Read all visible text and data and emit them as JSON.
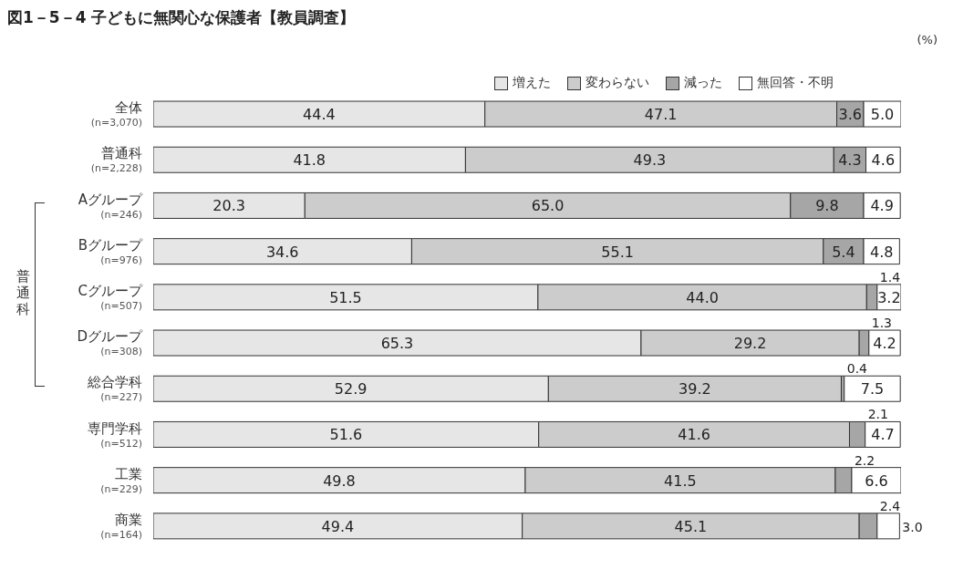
{
  "chart_data": {
    "type": "bar",
    "orientation": "horizontal",
    "stacked": true,
    "title": "図1－5－4 子どもに無関心な保護者【教員調査】",
    "categories": [
      "全体\n(n=3,070)",
      "普通科\n(n=2,228)",
      "Aグループ\n(n=246)",
      "Bグループ\n(n=976)",
      "Cグループ\n(n=507)",
      "Dグループ\n(n=308)",
      "総合学科\n(n=227)",
      "専門学科\n(n=512)",
      "工業\n(n=229)",
      "商業\n(n=164)"
    ],
    "series": [
      {
        "name": "増えた",
        "color": "#e6e6e6",
        "values": [
          44.4,
          41.8,
          20.3,
          34.6,
          51.5,
          65.3,
          52.9,
          51.6,
          49.8,
          49.4
        ],
        "value_labels": [
          "44.4",
          "41.8",
          "20.3",
          "34.6",
          "51.5",
          "65.3",
          "52.9",
          "51.6",
          "49.8",
          "49.4"
        ]
      },
      {
        "name": "変わらない",
        "color": "#cccccc",
        "values": [
          47.1,
          49.3,
          65.0,
          55.1,
          44.0,
          29.2,
          39.2,
          41.6,
          41.5,
          45.1
        ],
        "value_labels": [
          "47.1",
          "49.3",
          "65.0",
          "55.1",
          "44.0",
          "29.2",
          "39.2",
          "41.6",
          "41.5",
          "45.1"
        ]
      },
      {
        "name": "減った",
        "color": "#a6a6a6",
        "values": [
          3.6,
          4.3,
          9.8,
          5.4,
          1.4,
          1.3,
          0.4,
          2.1,
          2.2,
          2.4
        ],
        "value_labels": [
          "3.6",
          "4.3",
          "9.8",
          "5.4",
          "1.4",
          "1.3",
          "0.4",
          "2.1",
          "2.2",
          "2.4"
        ]
      },
      {
        "name": "無回答・不明",
        "color": "#ffffff",
        "values": [
          5.0,
          4.6,
          4.9,
          4.8,
          3.2,
          4.2,
          7.5,
          4.7,
          6.6,
          3.0
        ],
        "value_labels": [
          "5.0",
          "4.6",
          "4.9",
          "4.8",
          "3.2",
          "4.2",
          "7.5",
          "4.7",
          "6.6",
          "3.0"
        ]
      }
    ],
    "legend": "top",
    "annotations": [
      "(%)",
      "普通科"
    ]
  }
}
